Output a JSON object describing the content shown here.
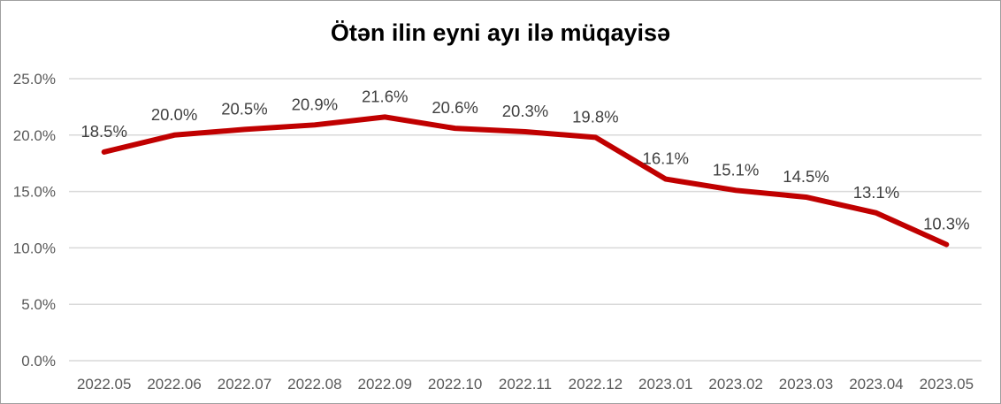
{
  "chart_data": {
    "type": "line",
    "title": "Ötən ilin eyni ayı ilə müqayisə",
    "categories": [
      "2022.05",
      "2022.06",
      "2022.07",
      "2022.08",
      "2022.09",
      "2022.10",
      "2022.11",
      "2022.12",
      "2023.01",
      "2023.02",
      "2023.03",
      "2023.04",
      "2023.05"
    ],
    "series": [
      {
        "values": [
          18.5,
          20.0,
          20.5,
          20.9,
          21.6,
          20.6,
          20.3,
          19.8,
          16.1,
          15.1,
          14.5,
          13.1,
          10.3
        ],
        "labels": [
          "18.5%",
          "20.0%",
          "20.5%",
          "20.9%",
          "21.6%",
          "20.6%",
          "20.3%",
          "19.8%",
          "16.1%",
          "15.1%",
          "14.5%",
          "13.1%",
          "10.3%"
        ],
        "color": "#C00000"
      }
    ],
    "xlabel": "",
    "ylabel": "",
    "ylim": [
      0,
      25
    ],
    "y_ticks": [
      {
        "value": 0,
        "label": "0.0%"
      },
      {
        "value": 5,
        "label": "5.0%"
      },
      {
        "value": 10,
        "label": "10.0%"
      },
      {
        "value": 15,
        "label": "15.0%"
      },
      {
        "value": 20,
        "label": "20.0%"
      },
      {
        "value": 25,
        "label": "25.0%"
      }
    ],
    "grid": true,
    "legend": "none",
    "colors": {
      "line": "#C00000",
      "gridline": "#D9D9D9",
      "axis_label": "#595959",
      "data_label": "#404040",
      "title": "#000000",
      "frame_border": "#A0A0A0",
      "background": "#FFFFFF"
    }
  }
}
